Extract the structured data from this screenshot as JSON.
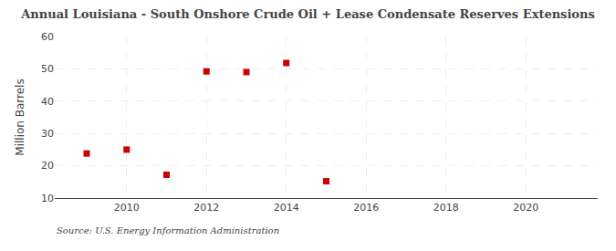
{
  "chart_data": {
    "type": "scatter",
    "title": "Annual Louisiana - South Onshore Crude Oil + Lease Condensate Reserves Extensions",
    "ylabel": "Million Barrels",
    "source": "Source: U.S. Energy Information Administration",
    "x": [
      2009,
      2010,
      2011,
      2012,
      2013,
      2014,
      2015
    ],
    "values": [
      23.8,
      25.0,
      17.2,
      49.2,
      49.0,
      51.8,
      15.2
    ],
    "color": "#cc0000",
    "marker": "square",
    "xlim": [
      2008.2,
      2021.8
    ],
    "ylim": [
      10,
      60
    ],
    "xticks": [
      2010,
      2012,
      2014,
      2016,
      2018,
      2020
    ],
    "yticks": [
      10,
      20,
      30,
      40,
      50,
      60
    ],
    "grid": true
  }
}
